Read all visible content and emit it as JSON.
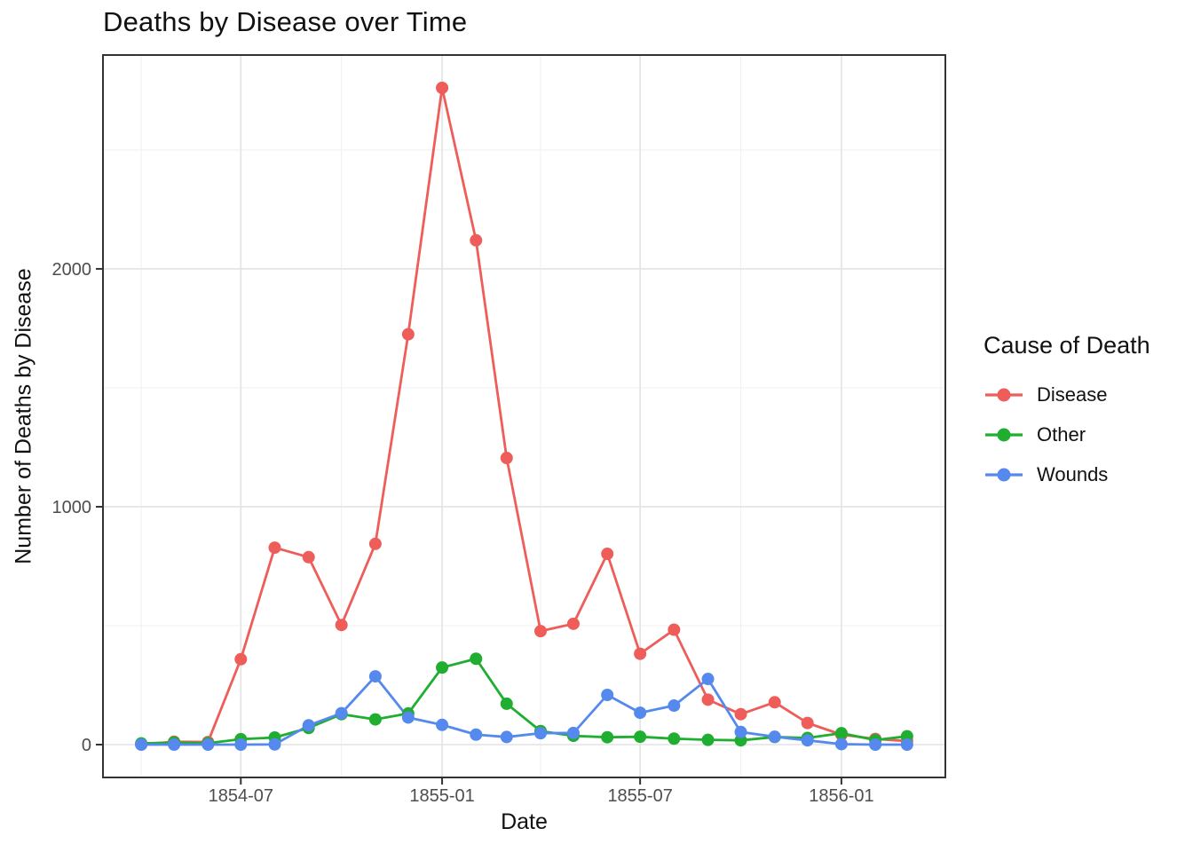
{
  "chart_data": {
    "type": "line",
    "title": "Deaths by Disease over Time",
    "xlabel": "Date",
    "ylabel": "Number of Deaths by Disease",
    "legend": {
      "title": "Cause of Death",
      "position": "right",
      "entries": [
        "Disease",
        "Other",
        "Wounds"
      ]
    },
    "x": [
      "1854-04",
      "1854-05",
      "1854-06",
      "1854-07",
      "1854-08",
      "1854-09",
      "1854-10",
      "1854-11",
      "1854-12",
      "1855-01",
      "1855-02",
      "1855-03",
      "1855-04",
      "1855-05",
      "1855-06",
      "1855-07",
      "1855-08",
      "1855-09",
      "1855-10",
      "1855-11",
      "1855-12",
      "1856-01",
      "1856-02",
      "1856-03"
    ],
    "series": [
      {
        "name": "Disease",
        "color": "#EE5D59",
        "values": [
          1,
          12,
          11,
          359,
          828,
          788,
          503,
          844,
          1725,
          2761,
          2120,
          1205,
          477,
          508,
          802,
          382,
          483,
          189,
          128,
          178,
          91,
          42,
          24,
          15
        ]
      },
      {
        "name": "Other",
        "color": "#1FAE2F",
        "values": [
          5,
          9,
          6,
          23,
          30,
          70,
          128,
          106,
          131,
          324,
          361,
          172,
          57,
          37,
          31,
          33,
          25,
          20,
          18,
          32,
          28,
          48,
          19,
          35
        ]
      },
      {
        "name": "Wounds",
        "color": "#5589EE",
        "values": [
          0,
          0,
          0,
          0,
          1,
          81,
          132,
          287,
          114,
          83,
          42,
          32,
          48,
          49,
          209,
          134,
          164,
          276,
          53,
          33,
          18,
          2,
          0,
          0
        ]
      }
    ],
    "axes": {
      "x_ticks": [
        {
          "date": "1854-07-01",
          "label": "1854-07"
        },
        {
          "date": "1855-01-01",
          "label": "1855-01"
        },
        {
          "date": "1855-07-01",
          "label": "1855-07"
        },
        {
          "date": "1856-01-01",
          "label": "1856-01"
        }
      ],
      "x_minor": [
        "1854-04-01",
        "1854-10-01",
        "1855-04-01",
        "1855-10-01",
        "1856-04-01"
      ],
      "y_ticks": [
        0,
        1000,
        2000
      ],
      "y_minor": [
        500,
        1500,
        2500
      ],
      "x_range": [
        "1854-02-25",
        "1856-04-05"
      ],
      "y_range": [
        -138,
        2899
      ],
      "grid": true
    },
    "colors": {
      "background": "#FFFFFF",
      "panel_border": "#333333",
      "grid_major": "#E3E3E3",
      "grid_minor": "#F1F1F1",
      "tick": "#333333",
      "tick_label": "#4D4D4D",
      "text": "#111111"
    }
  }
}
